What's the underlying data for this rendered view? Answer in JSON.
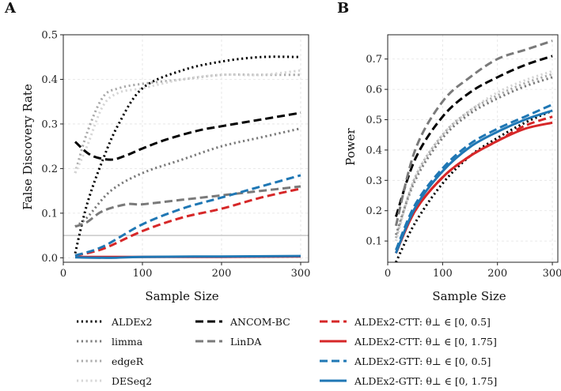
{
  "chart_data": [
    {
      "type": "line",
      "panel": "A",
      "xlabel": "Sample Size",
      "ylabel": "False Discovery Rate",
      "xlim": [
        0,
        310
      ],
      "ylim": [
        -0.01,
        0.5
      ],
      "xticks": [
        0,
        100,
        200,
        300
      ],
      "yticks": [
        "0.0",
        "0.1",
        "0.2",
        "0.3",
        "0.4",
        "0.5"
      ],
      "grid": true,
      "hline": {
        "y": 0.05,
        "color": "#c8c8c8"
      },
      "series": [
        {
          "key": "aldex2",
          "x": [
            15,
            30,
            50,
            70,
            100,
            150,
            200,
            250,
            300
          ],
          "y": [
            0.01,
            0.12,
            0.22,
            0.3,
            0.38,
            0.42,
            0.44,
            0.45,
            0.45
          ]
        },
        {
          "key": "limma",
          "x": [
            15,
            30,
            60,
            100,
            150,
            200,
            250,
            300
          ],
          "y": [
            0.07,
            0.09,
            0.15,
            0.19,
            0.22,
            0.25,
            0.27,
            0.29
          ]
        },
        {
          "key": "edger",
          "x": [
            15,
            30,
            50,
            70,
            100,
            150,
            200,
            250,
            300
          ],
          "y": [
            0.19,
            0.28,
            0.36,
            0.38,
            0.39,
            0.4,
            0.41,
            0.41,
            0.41
          ]
        },
        {
          "key": "deseq2",
          "x": [
            15,
            30,
            50,
            70,
            100,
            150,
            200,
            250,
            300
          ],
          "y": [
            0.19,
            0.25,
            0.34,
            0.37,
            0.38,
            0.4,
            0.41,
            0.41,
            0.42
          ]
        },
        {
          "key": "ancombc",
          "x": [
            15,
            35,
            60,
            80,
            100,
            130,
            170,
            200,
            250,
            300
          ],
          "y": [
            0.26,
            0.23,
            0.22,
            0.23,
            0.245,
            0.265,
            0.285,
            0.295,
            0.31,
            0.325
          ]
        },
        {
          "key": "linda",
          "x": [
            15,
            30,
            50,
            80,
            100,
            150,
            200,
            250,
            300
          ],
          "y": [
            0.07,
            0.08,
            0.105,
            0.12,
            0.12,
            0.13,
            0.14,
            0.15,
            0.16
          ]
        },
        {
          "key": "ctt05",
          "x": [
            15,
            50,
            100,
            150,
            200,
            250,
            300
          ],
          "y": [
            0.005,
            0.02,
            0.06,
            0.09,
            0.11,
            0.135,
            0.155
          ]
        },
        {
          "key": "ctt175",
          "x": [
            15,
            100,
            200,
            300
          ],
          "y": [
            0.002,
            0.002,
            0.002,
            0.003
          ]
        },
        {
          "key": "gtt05",
          "x": [
            15,
            50,
            100,
            150,
            200,
            250,
            300
          ],
          "y": [
            0.005,
            0.025,
            0.075,
            0.11,
            0.135,
            0.16,
            0.185
          ]
        },
        {
          "key": "gtt175",
          "x": [
            15,
            60,
            100,
            200,
            300
          ],
          "y": [
            0.001,
            0.0,
            0.002,
            0.003,
            0.004
          ]
        }
      ]
    },
    {
      "type": "line",
      "panel": "B",
      "xlabel": "Sample Size",
      "ylabel": "Power",
      "xlim": [
        0,
        310
      ],
      "ylim": [
        0.03,
        0.78
      ],
      "xticks": [
        0,
        100,
        200,
        300
      ],
      "yticks": [
        "0.1",
        "0.2",
        "0.3",
        "0.4",
        "0.5",
        "0.6",
        "0.7"
      ],
      "grid": true,
      "series": [
        {
          "key": "aldex2",
          "x": [
            15,
            50,
            100,
            150,
            200,
            250,
            300
          ],
          "y": [
            0.03,
            0.16,
            0.29,
            0.38,
            0.44,
            0.49,
            0.53
          ]
        },
        {
          "key": "limma",
          "x": [
            15,
            50,
            100,
            150,
            200,
            250,
            300
          ],
          "y": [
            0.12,
            0.3,
            0.44,
            0.52,
            0.57,
            0.61,
            0.64
          ]
        },
        {
          "key": "edger",
          "x": [
            15,
            50,
            100,
            150,
            200,
            250,
            300
          ],
          "y": [
            0.11,
            0.31,
            0.45,
            0.53,
            0.58,
            0.62,
            0.65
          ]
        },
        {
          "key": "deseq2",
          "x": [
            15,
            50,
            100,
            150,
            200,
            250,
            300
          ],
          "y": [
            0.1,
            0.31,
            0.45,
            0.53,
            0.59,
            0.63,
            0.66
          ]
        },
        {
          "key": "ancombc",
          "x": [
            15,
            50,
            100,
            150,
            200,
            250,
            300
          ],
          "y": [
            0.18,
            0.37,
            0.51,
            0.59,
            0.64,
            0.68,
            0.71
          ]
        },
        {
          "key": "linda",
          "x": [
            15,
            50,
            100,
            150,
            200,
            250,
            300
          ],
          "y": [
            0.15,
            0.4,
            0.56,
            0.64,
            0.7,
            0.73,
            0.76
          ]
        },
        {
          "key": "ctt05",
          "x": [
            15,
            50,
            100,
            150,
            200,
            250,
            300
          ],
          "y": [
            0.06,
            0.2,
            0.31,
            0.38,
            0.43,
            0.48,
            0.51
          ]
        },
        {
          "key": "ctt175",
          "x": [
            15,
            50,
            100,
            150,
            200,
            250,
            300
          ],
          "y": [
            0.06,
            0.2,
            0.31,
            0.38,
            0.43,
            0.47,
            0.49
          ]
        },
        {
          "key": "gtt05",
          "x": [
            15,
            50,
            100,
            150,
            200,
            250,
            300
          ],
          "y": [
            0.07,
            0.22,
            0.34,
            0.42,
            0.47,
            0.51,
            0.55
          ]
        },
        {
          "key": "gtt175",
          "x": [
            15,
            50,
            100,
            150,
            200,
            250,
            300
          ],
          "y": [
            0.06,
            0.21,
            0.33,
            0.41,
            0.46,
            0.5,
            0.53
          ]
        }
      ]
    }
  ],
  "legend": [
    {
      "key": "aldex2",
      "label": "ALDEx2",
      "color": "#000000",
      "style": "dotted"
    },
    {
      "key": "limma",
      "label": "limma",
      "color": "#7a7a7a",
      "style": "dotted"
    },
    {
      "key": "edger",
      "label": "edgeR",
      "color": "#aaaaaa",
      "style": "dotted"
    },
    {
      "key": "deseq2",
      "label": "DESeq2",
      "color": "#d6d6d6",
      "style": "dotted"
    },
    {
      "key": "ancombc",
      "label": "ANCOM-BC",
      "color": "#000000",
      "style": "dashed"
    },
    {
      "key": "linda",
      "label": "LinDA",
      "color": "#7a7a7a",
      "style": "dashed"
    },
    {
      "key": "ctt05",
      "label": "ALDEx2-CTT: θ⊥ ∈ [0, 0.5]",
      "color": "#d62728",
      "style": "dashed"
    },
    {
      "key": "ctt175",
      "label": "ALDEx2-CTT: θ⊥ ∈ [0, 1.75]",
      "color": "#d62728",
      "style": "solid"
    },
    {
      "key": "gtt05",
      "label": "ALDEx2-GTT: θ⊥ ∈ [0, 0.5]",
      "color": "#1f77b4",
      "style": "dashed"
    },
    {
      "key": "gtt175",
      "label": "ALDEx2-GTT: θ⊥ ∈ [0, 1.75]",
      "color": "#1f77b4",
      "style": "solid"
    }
  ]
}
